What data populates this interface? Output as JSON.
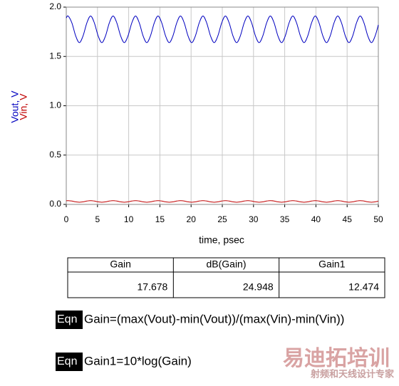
{
  "chart_data": {
    "type": "line",
    "x": [
      0,
      0.3,
      0.9,
      1.5,
      2.1,
      2.7,
      3.3,
      3.9,
      4.5,
      5.1,
      5.7,
      6.3,
      6.9,
      7.5,
      8.1,
      8.7,
      9.3,
      9.9,
      10.5,
      11.1,
      11.7,
      12.3,
      12.9,
      13.5,
      14.1,
      14.7,
      15.3,
      15.9,
      16.5,
      17.1,
      17.7,
      18.3,
      18.9,
      19.5,
      20.1,
      20.7,
      21.3,
      21.9,
      22.5,
      23.1,
      23.7,
      24.3,
      24.9,
      25.5,
      26.1,
      26.7,
      27.3,
      27.9,
      28.5,
      29.1,
      29.7,
      30.3,
      30.9,
      31.5,
      32.1,
      32.7,
      33.3,
      33.9,
      34.5,
      35.1,
      35.7,
      36.3,
      36.9,
      37.5,
      38.1,
      38.7,
      39.3,
      39.9,
      40.5,
      41.1,
      41.7,
      42.3,
      42.9,
      43.5,
      44.1,
      44.7,
      45.3,
      45.9,
      46.5,
      47.1,
      47.7,
      48.3,
      48.9,
      49.5,
      50
    ],
    "series": [
      {
        "name": "Vout, V",
        "color": "#0000c0",
        "values": [
          1.89,
          1.91,
          1.84,
          1.71,
          1.64,
          1.71,
          1.84,
          1.91,
          1.84,
          1.71,
          1.64,
          1.71,
          1.84,
          1.91,
          1.84,
          1.71,
          1.64,
          1.71,
          1.84,
          1.91,
          1.84,
          1.71,
          1.64,
          1.71,
          1.84,
          1.91,
          1.84,
          1.71,
          1.64,
          1.71,
          1.84,
          1.91,
          1.84,
          1.71,
          1.64,
          1.71,
          1.84,
          1.91,
          1.84,
          1.71,
          1.64,
          1.71,
          1.84,
          1.91,
          1.84,
          1.71,
          1.64,
          1.71,
          1.84,
          1.91,
          1.84,
          1.71,
          1.64,
          1.71,
          1.84,
          1.91,
          1.84,
          1.71,
          1.64,
          1.71,
          1.84,
          1.91,
          1.84,
          1.71,
          1.64,
          1.71,
          1.84,
          1.91,
          1.84,
          1.71,
          1.64,
          1.71,
          1.84,
          1.91,
          1.84,
          1.71,
          1.64,
          1.71,
          1.84,
          1.91,
          1.84,
          1.71,
          1.64,
          1.71,
          1.82
        ]
      },
      {
        "name": "Vin, V",
        "color": "#c00000",
        "values": [
          0.037,
          0.038,
          0.034,
          0.026,
          0.022,
          0.026,
          0.034,
          0.038,
          0.034,
          0.026,
          0.022,
          0.026,
          0.034,
          0.038,
          0.034,
          0.026,
          0.022,
          0.026,
          0.034,
          0.038,
          0.034,
          0.026,
          0.022,
          0.026,
          0.034,
          0.038,
          0.034,
          0.026,
          0.022,
          0.026,
          0.034,
          0.038,
          0.034,
          0.026,
          0.022,
          0.026,
          0.034,
          0.038,
          0.034,
          0.026,
          0.022,
          0.026,
          0.034,
          0.038,
          0.034,
          0.026,
          0.022,
          0.026,
          0.034,
          0.038,
          0.034,
          0.026,
          0.022,
          0.026,
          0.034,
          0.038,
          0.034,
          0.026,
          0.022,
          0.026,
          0.034,
          0.038,
          0.034,
          0.026,
          0.022,
          0.026,
          0.034,
          0.038,
          0.034,
          0.026,
          0.022,
          0.026,
          0.034,
          0.038,
          0.034,
          0.026,
          0.022,
          0.026,
          0.034,
          0.038,
          0.034,
          0.026,
          0.022,
          0.026,
          0.033
        ]
      }
    ],
    "x_label": "time, psec",
    "xlim": [
      0,
      50
    ],
    "xticks": [
      0,
      5,
      10,
      15,
      20,
      25,
      30,
      35,
      40,
      45,
      50
    ],
    "ylim": [
      0,
      2
    ],
    "yticks": [
      {
        "value": 0,
        "label": "0.0"
      },
      {
        "value": 0.5,
        "label": "0.5"
      },
      {
        "value": 1,
        "label": "1.0"
      },
      {
        "value": 1.5,
        "label": "1.5"
      },
      {
        "value": 2,
        "label": "2.0"
      }
    ],
    "grid": true
  },
  "table": {
    "header": [
      "Gain",
      "dB(Gain)",
      "Gain1"
    ],
    "rows": [
      [
        "17.678",
        "24.948",
        "12.474"
      ]
    ]
  },
  "equations": [
    {
      "tag": "Eqn",
      "text": "Gain=(max(Vout)-min(Vout))/(max(Vin)-min(Vin))"
    },
    {
      "tag": "Eqn",
      "text": "Gain1=10*log(Gain)"
    }
  ],
  "watermark": {
    "title": "易迪拓培训",
    "subtitle": "射频和天线设计专家"
  }
}
